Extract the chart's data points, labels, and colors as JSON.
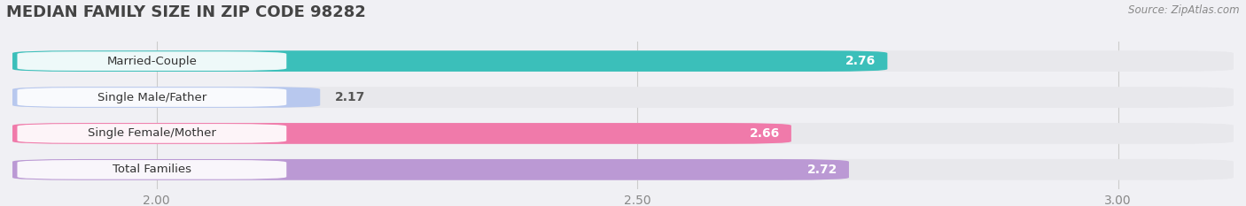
{
  "title": "MEDIAN FAMILY SIZE IN ZIP CODE 98282",
  "source": "Source: ZipAtlas.com",
  "categories": [
    "Married-Couple",
    "Single Male/Father",
    "Single Female/Mother",
    "Total Families"
  ],
  "values": [
    2.76,
    2.17,
    2.66,
    2.72
  ],
  "bar_colors": [
    "#3bbfba",
    "#b8c8ee",
    "#f07aaa",
    "#bb99d4"
  ],
  "bar_bg_color": "#e8e8ec",
  "background_color": "#f0f0f4",
  "xlim": [
    1.85,
    3.12
  ],
  "xticks": [
    2.0,
    2.5,
    3.0
  ],
  "label_color_inside": [
    "#ffffff",
    "#555555",
    "#ffffff",
    "#ffffff"
  ],
  "label_inside": [
    true,
    false,
    true,
    true
  ],
  "title_fontsize": 13,
  "tick_fontsize": 10,
  "bar_label_fontsize": 10,
  "bar_height": 0.58,
  "cat_label_fontsize": 9.5
}
